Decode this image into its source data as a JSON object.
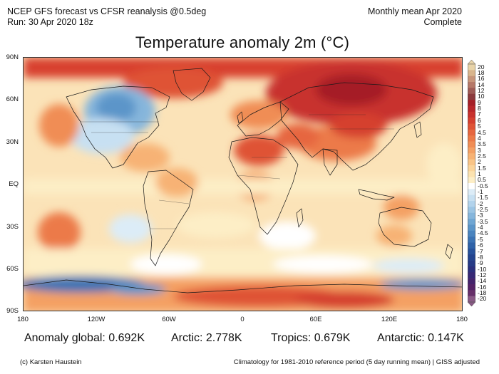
{
  "header": {
    "line1_left": "NCEP GFS forecast vs CFSR reanalysis @0.5deg",
    "line2_left": "Run: 30 Apr 2020 18z",
    "line1_right": "Monthly mean Apr 2020",
    "line2_right": "Complete"
  },
  "map": {
    "title": "Temperature anomaly 2m (°C)",
    "lat_labels": [
      "90N",
      "60N",
      "30N",
      "EQ",
      "30S",
      "60S",
      "90S"
    ],
    "lon_labels": [
      "180",
      "120W",
      "60W",
      "0",
      "60E",
      "120E",
      "180"
    ]
  },
  "colorbar": {
    "labels": [
      "20",
      "18",
      "16",
      "14",
      "12",
      "10",
      "9",
      "8",
      "7",
      "6",
      "5",
      "4.5",
      "4",
      "3.5",
      "3",
      "2.5",
      "2",
      "1.5",
      "1",
      "0.5",
      "-0.5",
      "-1",
      "-1.5",
      "-2",
      "-2.5",
      "-3",
      "-3.5",
      "-4",
      "-4.5",
      "-5",
      "-6",
      "-7",
      "-8",
      "-9",
      "-10",
      "-12",
      "-14",
      "-16",
      "-18",
      "-20"
    ],
    "colors": [
      "#e8d3a8",
      "#d9b58c",
      "#c8957a",
      "#b57868",
      "#9e5a55",
      "#8b3a3d",
      "#a51f27",
      "#b8262a",
      "#c8312d",
      "#d53f2f",
      "#df5336",
      "#e6663f",
      "#ec7a48",
      "#f08d55",
      "#f4a064",
      "#f7b274",
      "#f9c486",
      "#fbd49a",
      "#fce2af",
      "#fdeec6",
      "#ffffff",
      "#dcecf7",
      "#c7e0f2",
      "#b2d3ec",
      "#9cc5e4",
      "#86b6dc",
      "#6fa6d3",
      "#5b95c9",
      "#4a84bf",
      "#3b73b4",
      "#2f62a8",
      "#27529c",
      "#23448f",
      "#263a86",
      "#2b2f7d",
      "#362875",
      "#44236c",
      "#542266",
      "#67306a",
      "#8a5a86"
    ]
  },
  "stats": {
    "global": "Anomaly global: 0.692K",
    "arctic": "Arctic: 2.778K",
    "tropics": "Tropics: 0.679K",
    "antarctic": "Antarctic: 0.147K"
  },
  "footer": {
    "left": "(c) Karsten Haustein",
    "right": "Climatology for 1981-2010 reference period (5 day running mean) | GISS adjusted"
  }
}
